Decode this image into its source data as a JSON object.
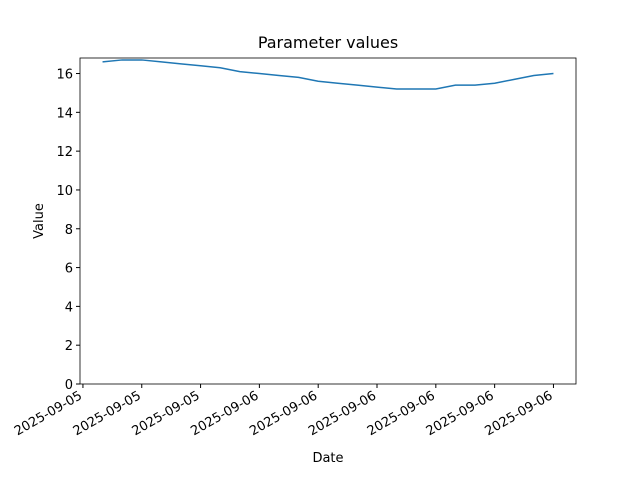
{
  "chart_data": {
    "type": "line",
    "title": "Parameter values",
    "xlabel": "Date",
    "ylabel": "Value",
    "x": [
      "2025-09-05T16:00",
      "2025-09-05T17:00",
      "2025-09-05T18:00",
      "2025-09-05T19:00",
      "2025-09-05T20:00",
      "2025-09-05T21:00",
      "2025-09-05T22:00",
      "2025-09-05T23:00",
      "2025-09-06T00:00",
      "2025-09-06T01:00",
      "2025-09-06T02:00",
      "2025-09-06T03:00",
      "2025-09-06T04:00",
      "2025-09-06T05:00",
      "2025-09-06T06:00",
      "2025-09-06T07:00",
      "2025-09-06T08:00",
      "2025-09-06T09:00",
      "2025-09-06T10:00",
      "2025-09-06T11:00",
      "2025-09-06T12:00",
      "2025-09-06T13:00",
      "2025-09-06T14:00",
      "2025-09-06T15:00"
    ],
    "series": [
      {
        "color": "#1f77b4",
        "values": [
          16.6,
          16.7,
          16.7,
          16.6,
          16.5,
          16.4,
          16.3,
          16.1,
          16.0,
          15.9,
          15.8,
          15.6,
          15.5,
          15.4,
          15.3,
          15.2,
          15.2,
          15.2,
          15.4,
          15.4,
          15.5,
          15.7,
          15.9,
          16.0
        ]
      }
    ],
    "xlim": [
      "2025-09-05T14:51",
      "2025-09-06T16:09"
    ],
    "xticks": [
      {
        "value": "2025-09-05T15:00",
        "label": "2025-09-05"
      },
      {
        "value": "2025-09-05T18:00",
        "label": "2025-09-05"
      },
      {
        "value": "2025-09-05T21:00",
        "label": "2025-09-05"
      },
      {
        "value": "2025-09-06T00:00",
        "label": "2025-09-06"
      },
      {
        "value": "2025-09-06T03:00",
        "label": "2025-09-06"
      },
      {
        "value": "2025-09-06T06:00",
        "label": "2025-09-06"
      },
      {
        "value": "2025-09-06T09:00",
        "label": "2025-09-06"
      },
      {
        "value": "2025-09-06T12:00",
        "label": "2025-09-06"
      },
      {
        "value": "2025-09-06T15:00",
        "label": "2025-09-06"
      }
    ],
    "ylim": [
      0,
      16.8
    ],
    "yticks": [
      0,
      2,
      4,
      6,
      8,
      10,
      12,
      14,
      16
    ],
    "grid": false
  }
}
